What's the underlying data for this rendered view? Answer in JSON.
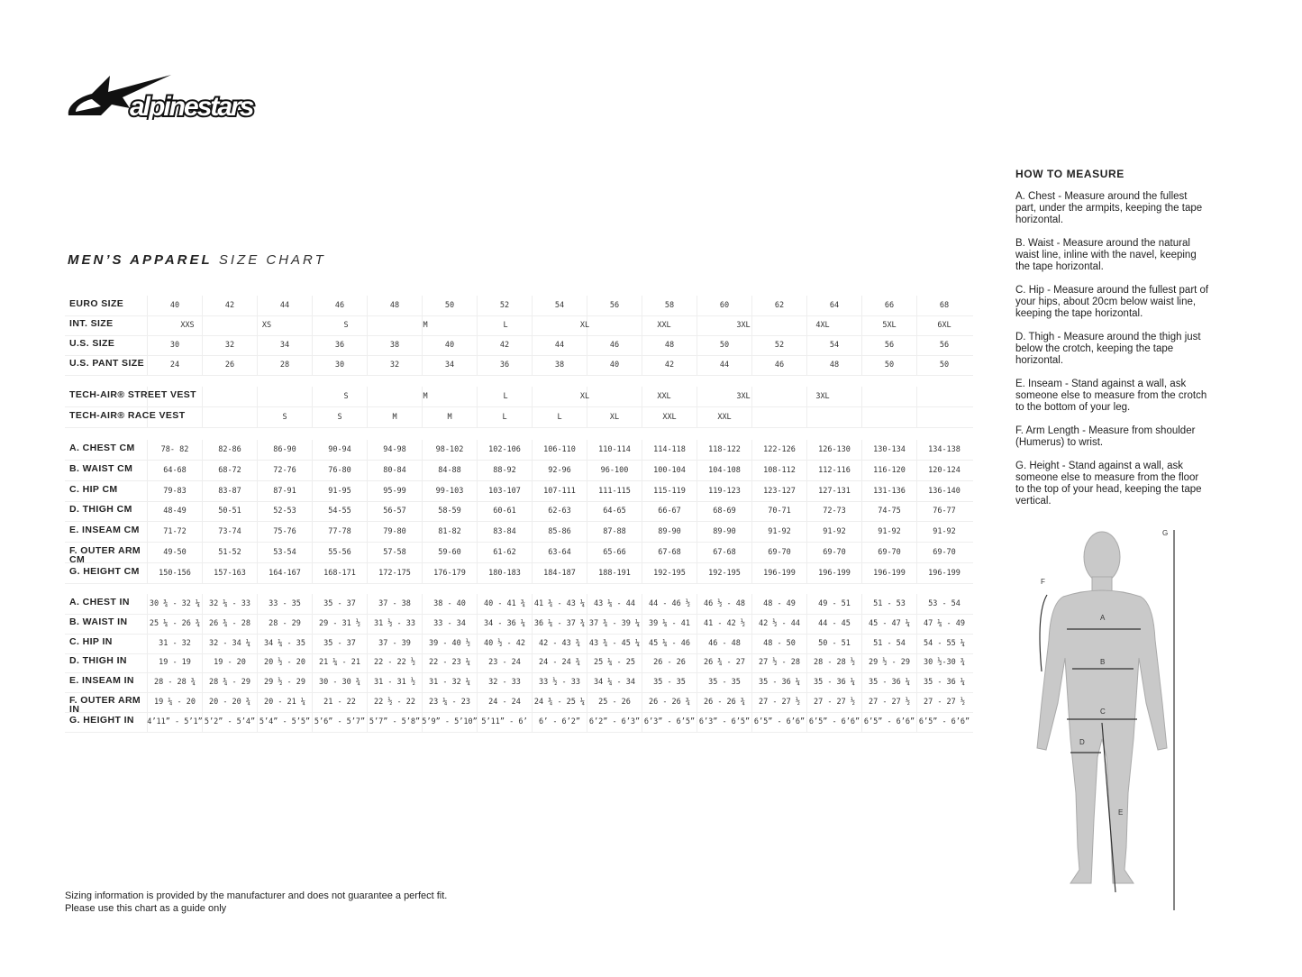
{
  "brand": "alpinestars",
  "title": {
    "bold": "MEN’S APPAREL",
    "light": "SIZE CHART"
  },
  "size_rows": [
    {
      "label": "EURO SIZE",
      "values": [
        "40",
        "42",
        "44",
        "46",
        "48",
        "50",
        "52",
        "54",
        "56",
        "58",
        "60",
        "62",
        "64",
        "66",
        "68"
      ]
    },
    {
      "label": "INT. SIZE",
      "values": [
        "XXS",
        "XS",
        "S",
        "M",
        "L",
        "XL",
        "XXL",
        "3XL",
        "4XL",
        "5XL",
        "6XL"
      ]
    },
    {
      "label": "U.S. SIZE",
      "values": [
        "30",
        "32",
        "34",
        "36",
        "38",
        "40",
        "42",
        "44",
        "46",
        "48",
        "50",
        "52",
        "54",
        "56",
        "56"
      ]
    },
    {
      "label": "U.S. PANT SIZE",
      "values": [
        "24",
        "26",
        "28",
        "30",
        "32",
        "34",
        "36",
        "38",
        "40",
        "42",
        "44",
        "46",
        "48",
        "50",
        "50"
      ]
    }
  ],
  "vest_rows": [
    {
      "label": "TECH-AIR® STREET VEST",
      "values": [
        "S",
        "M",
        "L",
        "XL",
        "XXL",
        "3XL",
        "3XL"
      ]
    },
    {
      "label": "TECH-AIR® RACE VEST",
      "values": [
        "S",
        "S",
        "M",
        "M",
        "L",
        "L",
        "XL",
        "XXL",
        "XXL"
      ]
    }
  ],
  "cm_rows": [
    {
      "label": "A. CHEST CM",
      "values": [
        "78- 82",
        "82-86",
        "86-90",
        "90-94",
        "94-98",
        "98-102",
        "102-106",
        "106-110",
        "110-114",
        "114-118",
        "118-122",
        "122-126",
        "126-130",
        "130-134",
        "134-138"
      ]
    },
    {
      "label": "B. WAIST CM",
      "values": [
        "64-68",
        "68-72",
        "72-76",
        "76-80",
        "80-84",
        "84-88",
        "88-92",
        "92-96",
        "96-100",
        "100-104",
        "104-108",
        "108-112",
        "112-116",
        "116-120",
        "120-124"
      ]
    },
    {
      "label": "C. HIP CM",
      "values": [
        "79-83",
        "83-87",
        "87-91",
        "91-95",
        "95-99",
        "99-103",
        "103-107",
        "107-111",
        "111-115",
        "115-119",
        "119-123",
        "123-127",
        "127-131",
        "131-136",
        "136-140"
      ]
    },
    {
      "label": "D. THIGH CM",
      "values": [
        "48-49",
        "50-51",
        "52-53",
        "54-55",
        "56-57",
        "58-59",
        "60-61",
        "62-63",
        "64-65",
        "66-67",
        "68-69",
        "70-71",
        "72-73",
        "74-75",
        "76-77"
      ]
    },
    {
      "label": "E. INSEAM CM",
      "values": [
        "71-72",
        "73-74",
        "75-76",
        "77-78",
        "79-80",
        "81-82",
        "83-84",
        "85-86",
        "87-88",
        "89-90",
        "89-90",
        "91-92",
        "91-92",
        "91-92",
        "91-92"
      ]
    },
    {
      "label": "F. OUTER ARM CM",
      "values": [
        "49-50",
        "51-52",
        "53-54",
        "55-56",
        "57-58",
        "59-60",
        "61-62",
        "63-64",
        "65-66",
        "67-68",
        "67-68",
        "69-70",
        "69-70",
        "69-70",
        "69-70"
      ]
    },
    {
      "label": "G. HEIGHT CM",
      "values": [
        "150-156",
        "157-163",
        "164-167",
        "168-171",
        "172-175",
        "176-179",
        "180-183",
        "184-187",
        "188-191",
        "192-195",
        "192-195",
        "196-199",
        "196-199",
        "196-199",
        "196-199"
      ]
    }
  ],
  "in_rows": [
    {
      "label": "A. CHEST IN",
      "values": [
        "30 ¾ - 32 ¼",
        "32 ¼ - 33",
        "33 - 35",
        "35 - 37",
        "37 - 38",
        "38 - 40",
        "40 - 41 ¾",
        "41 ¾ - 43 ¼",
        "43 ¼ - 44",
        "44 - 46 ½",
        "46 ½ - 48",
        "48 - 49",
        "49 - 51",
        "51 - 53",
        "53 - 54"
      ]
    },
    {
      "label": "B. WAIST IN",
      "values": [
        "25 ¼ - 26 ¾",
        "26 ¾ - 28",
        "28 - 29",
        "29 - 31 ½",
        "31 ½ - 33",
        "33 - 34",
        "34 - 36 ¼",
        "36 ¼ - 37 ¾",
        "37 ¾ - 39 ¼",
        "39 ¼ - 41",
        "41 - 42 ½",
        "42 ½ - 44",
        "44 - 45",
        "45 - 47 ¼",
        "47 ¼ - 49"
      ]
    },
    {
      "label": "C. HIP IN",
      "values": [
        "31 - 32",
        "32 - 34 ¼",
        "34 ¼ - 35",
        "35 - 37",
        "37 - 39",
        "39 - 40 ½",
        "40 ½ - 42",
        "42 - 43 ¾",
        "43 ¾ - 45 ¼",
        "45 ¼ - 46",
        "46 - 48",
        "48 - 50",
        "50 - 51",
        "51 - 54",
        "54 - 55 ¼"
      ]
    },
    {
      "label": "D. THIGH IN",
      "values": [
        "19 - 19",
        "19 - 20",
        "20 ½ - 20",
        "21 ¼ - 21",
        "22 - 22 ½",
        "22 - 23 ¼",
        "23 - 24",
        "24 - 24 ¾",
        "25 ¼ - 25",
        "26 - 26",
        "26 ¾ - 27",
        "27 ½ - 28",
        "28 - 28 ½",
        "29 ½ - 29",
        "30 ½-30 ¾"
      ]
    },
    {
      "label": "E. INSEAM IN",
      "values": [
        "28 - 28 ¾",
        "28 ¾ - 29",
        "29 ½ - 29",
        "30 - 30 ¾",
        "31 - 31 ½",
        "31 - 32 ¼",
        "32 - 33",
        "33 ½ - 33",
        "34 ¼ - 34",
        "35 - 35",
        "35 - 35",
        "35 - 36 ¼",
        "35 - 36 ¼",
        "35 - 36 ¼",
        "35 - 36 ¼"
      ]
    },
    {
      "label": "F. OUTER ARM IN",
      "values": [
        "19 ¼ - 20",
        "20 - 20 ¾",
        "20 - 21 ¼",
        "21 - 22",
        "22 ½ - 22",
        "23 ¼ - 23",
        "24 - 24",
        "24 ¾ - 25 ¼",
        "25 - 26",
        "26 - 26 ¾",
        "26 - 26 ¾",
        "27 - 27 ½",
        "27 - 27 ½",
        "27 - 27 ½",
        "27 - 27 ½"
      ]
    },
    {
      "label": "G. HEIGHT IN",
      "values": [
        "4’11” - 5’1”",
        "5’2” - 5’4”",
        "5’4” - 5’5”",
        "5’6” - 5’7”",
        "5’7” - 5’8”",
        "5’9” - 5’10”",
        "5’11” - 6’",
        "6’ - 6’2”",
        "6’2” - 6’3”",
        "6’3” - 6’5”",
        "6’3” - 6’5”",
        "6’5” - 6’6”",
        "6’5” - 6’6”",
        "6’5” - 6’6”",
        "6’5” - 6’6”"
      ]
    }
  ],
  "how_to_measure": {
    "heading": "HOW TO MEASURE",
    "items": [
      "A. Chest - Measure around the fullest part, under the armpits, keeping the tape horizontal.",
      "B. Waist - Measure around the natural waist line, inline with the navel, keeping the tape horizontal.",
      "C. Hip - Measure around the fullest part of your hips, about 20cm below waist line, keeping the tape horizontal.",
      "D. Thigh - Measure around the thigh just below the crotch, keeping the tape horizontal.",
      "E. Inseam - Stand against a wall, ask someone else to measure from the crotch to the bottom of your leg.",
      "F. Arm Length - Measure from shoulder (Humerus) to wrist.",
      "G. Height - Stand against a wall, ask someone else to measure from the floor to the top of your head, keeping the tape vertical."
    ]
  },
  "figure_labels": {
    "a": "A",
    "b": "B",
    "c": "C",
    "d": "D",
    "e": "E",
    "f": "F",
    "g": "G"
  },
  "disclaimer": [
    "Sizing information is provided by the manufacturer and does not guarantee a perfect fit.",
    "Please use this chart as a guide only"
  ],
  "colors": {
    "text": "#222222",
    "grid": "#eeeeee",
    "figure": "#c8c8c8"
  }
}
